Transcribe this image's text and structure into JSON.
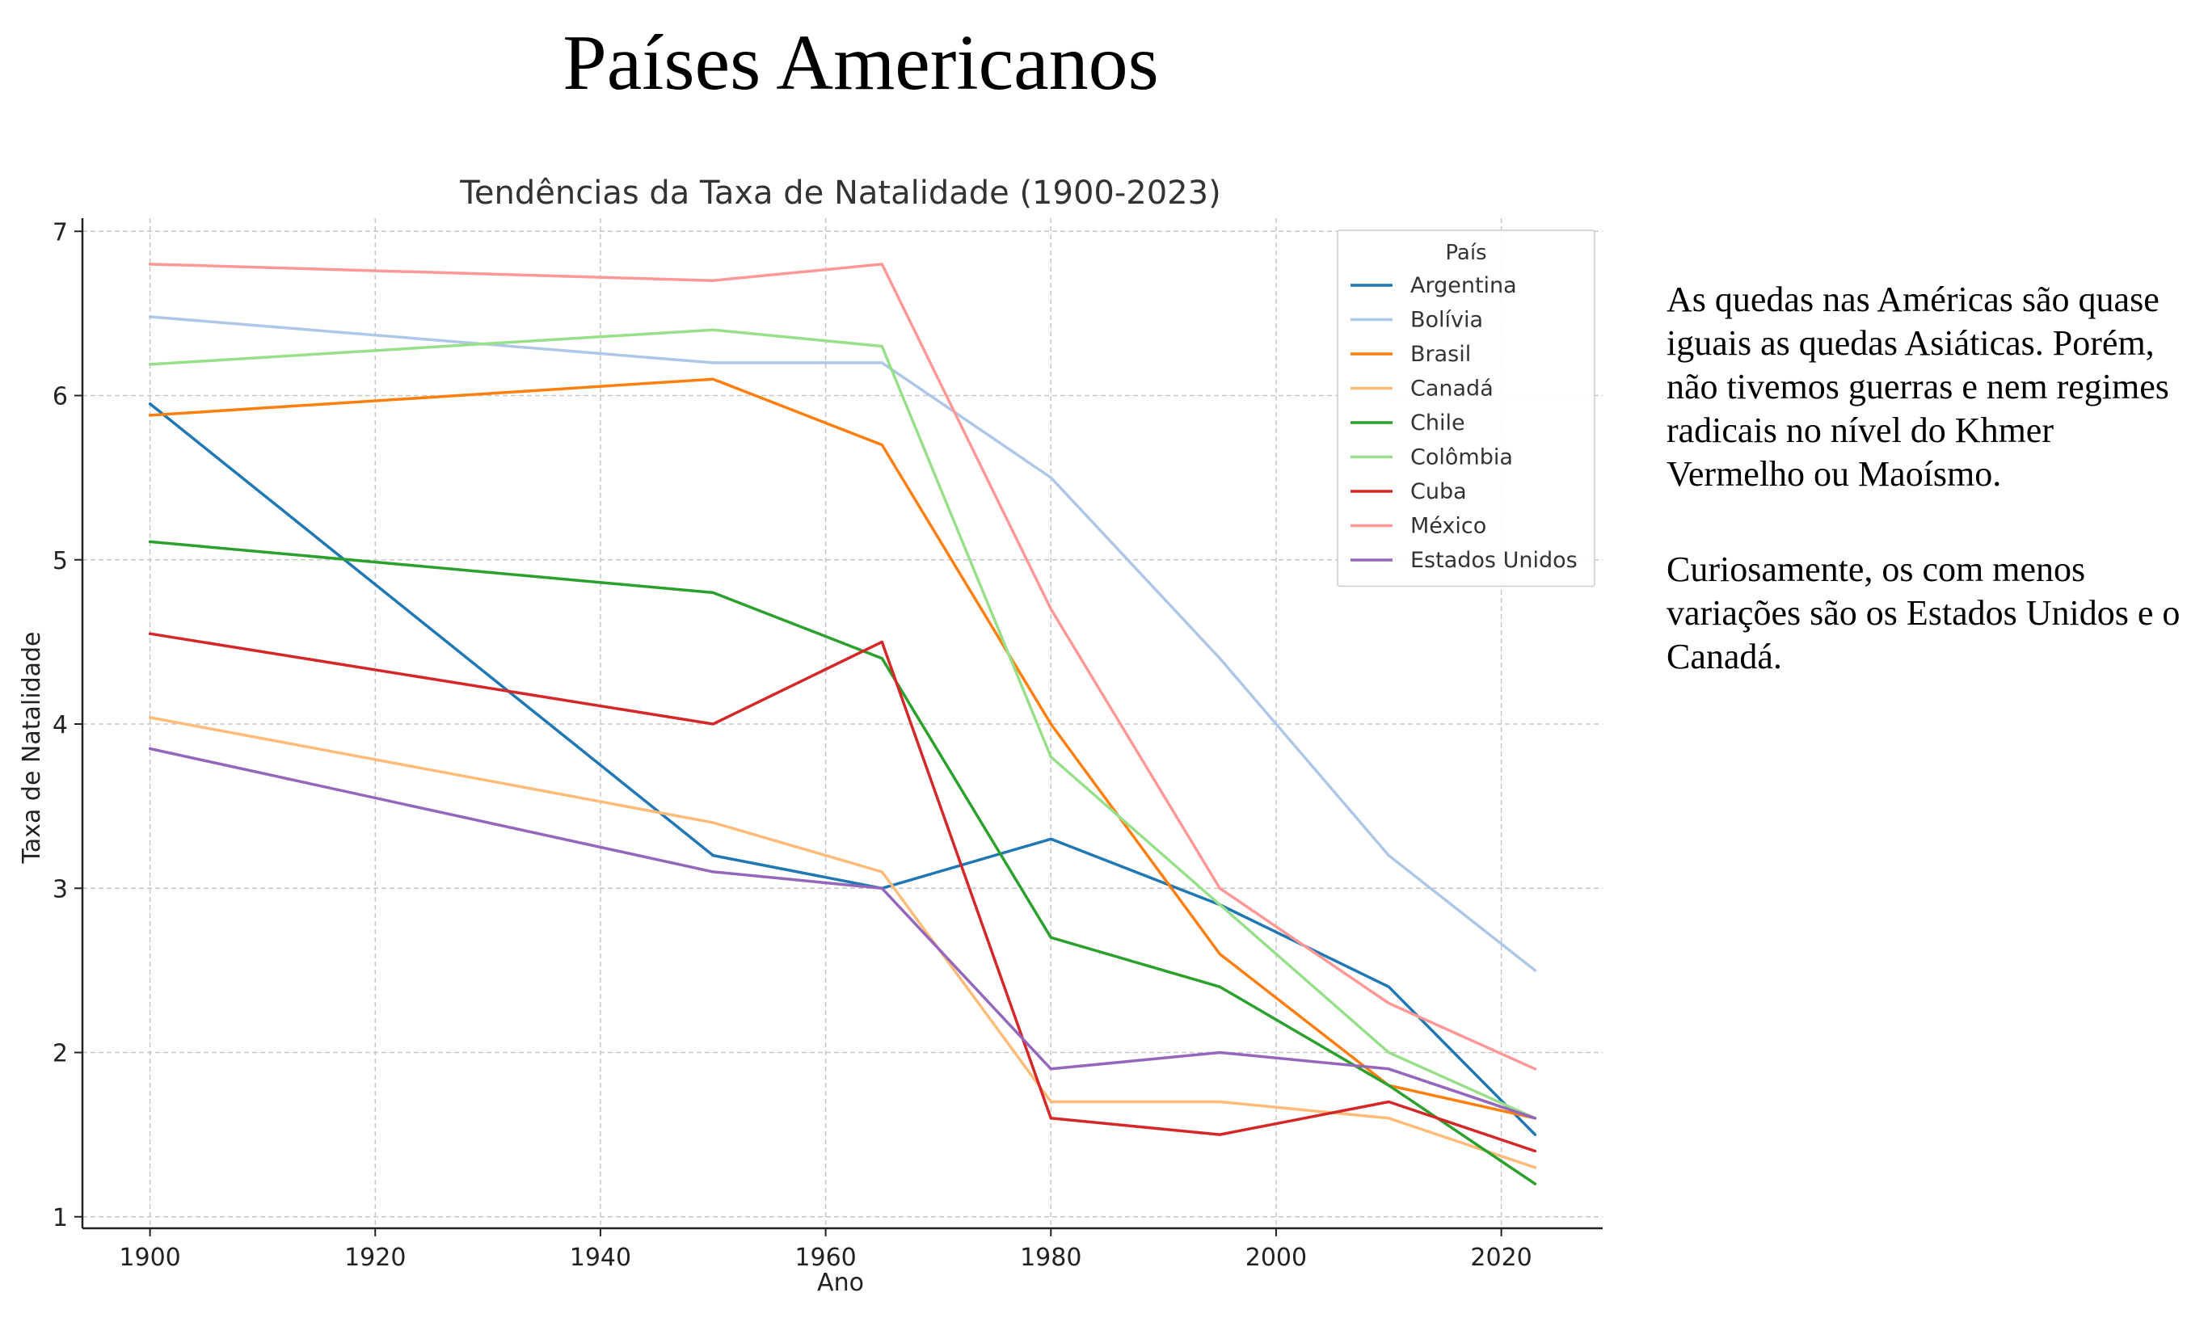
{
  "page_title": "Países Americanos",
  "commentary": {
    "paragraph_1": "As quedas nas Américas são quase iguais as quedas Asiáticas. Porém, não tivemos guerras e nem regimes radicais no nível do Khmer Vermelho ou Maoísmo.",
    "paragraph_2": "Curiosamente, os com menos variações são os Estados Unidos e o Canadá."
  },
  "chart_data": {
    "type": "line",
    "title": "Tendências da Taxa de Natalidade (1900-2023)",
    "xlabel": "Ano",
    "ylabel": "Taxa de Natalidade",
    "xlim": [
      1894,
      2029
    ],
    "ylim": [
      0.93,
      7.08
    ],
    "xticks": [
      1900,
      1920,
      1940,
      1960,
      1980,
      2000,
      2020
    ],
    "yticks": [
      1,
      2,
      3,
      4,
      5,
      6,
      7
    ],
    "grid": true,
    "legend_title": "País",
    "legend_position": "top-right",
    "x": [
      1900,
      1950,
      1965,
      1980,
      1995,
      2010,
      2023
    ],
    "series": [
      {
        "name": "Argentina",
        "color": "#1f77b4",
        "values": [
          5.95,
          3.2,
          3.0,
          3.3,
          2.9,
          2.4,
          1.5
        ]
      },
      {
        "name": "Bolívia",
        "color": "#aec7e8",
        "values": [
          6.48,
          6.2,
          6.2,
          5.5,
          4.4,
          3.2,
          2.5
        ]
      },
      {
        "name": "Brasil",
        "color": "#ff7f0e",
        "values": [
          5.88,
          6.1,
          5.7,
          4.0,
          2.6,
          1.8,
          1.6
        ]
      },
      {
        "name": "Canadá",
        "color": "#ffbb78",
        "values": [
          4.04,
          3.4,
          3.1,
          1.7,
          1.7,
          1.6,
          1.3
        ]
      },
      {
        "name": "Chile",
        "color": "#2ca02c",
        "values": [
          5.11,
          4.8,
          4.4,
          2.7,
          2.4,
          1.8,
          1.2
        ]
      },
      {
        "name": "Colômbia",
        "color": "#98df8a",
        "values": [
          6.19,
          6.4,
          6.3,
          3.8,
          2.9,
          2.0,
          1.6
        ]
      },
      {
        "name": "Cuba",
        "color": "#d62728",
        "values": [
          4.55,
          4.0,
          4.5,
          1.6,
          1.5,
          1.7,
          1.4
        ]
      },
      {
        "name": "México",
        "color": "#ff9896",
        "values": [
          6.8,
          6.7,
          6.8,
          4.7,
          3.0,
          2.3,
          1.9
        ]
      },
      {
        "name": "Estados Unidos",
        "color": "#9467bd",
        "values": [
          3.85,
          3.1,
          3.0,
          1.9,
          2.0,
          1.9,
          1.6
        ]
      }
    ]
  }
}
